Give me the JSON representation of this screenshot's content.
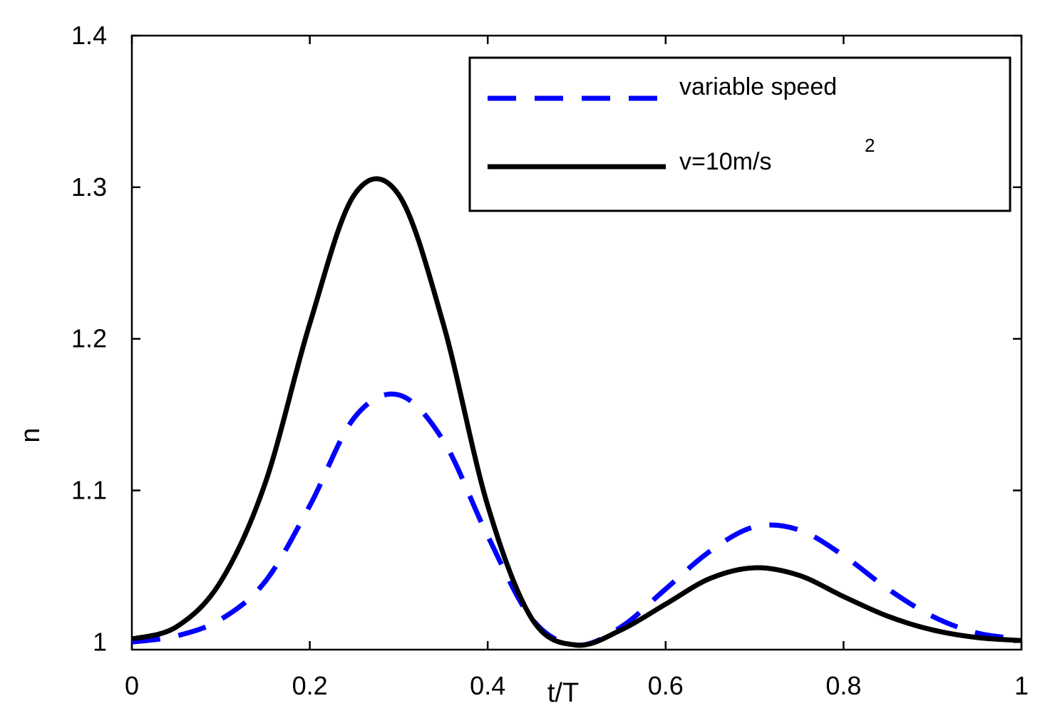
{
  "chart_data": {
    "type": "line",
    "title": "",
    "xlabel": "t/T",
    "ylabel": "n",
    "xlim": [
      0,
      1
    ],
    "ylim": [
      0.995,
      1.4
    ],
    "xticks": [
      0,
      0.2,
      0.4,
      0.6,
      0.8,
      1
    ],
    "xtick_labels": [
      "0",
      "0.2",
      "0.4",
      "0.6",
      "0.8",
      "1"
    ],
    "yticks": [
      1.0,
      1.1,
      1.2,
      1.3,
      1.4
    ],
    "ytick_labels": [
      "1",
      "1.1",
      "1.2",
      "1.3",
      "1.4"
    ],
    "grid": false,
    "legend_position": "top-right",
    "legend_superscript": "2",
    "series": [
      {
        "name": "variable speed",
        "color": "#0000ff",
        "style": "dashed",
        "x": [
          0,
          0.05,
          0.1,
          0.15,
          0.2,
          0.25,
          0.3,
          0.35,
          0.4,
          0.45,
          0.5,
          0.55,
          0.6,
          0.65,
          0.7,
          0.75,
          0.8,
          0.85,
          0.9,
          0.95,
          1.0
        ],
        "y": [
          1.0,
          1.004,
          1.015,
          1.04,
          1.09,
          1.148,
          1.163,
          1.133,
          1.07,
          1.015,
          0.998,
          1.01,
          1.035,
          1.06,
          1.076,
          1.074,
          1.057,
          1.035,
          1.017,
          1.006,
          1.002
        ]
      },
      {
        "name": "v=10m/s",
        "color": "#000000",
        "style": "solid",
        "x": [
          0,
          0.05,
          0.1,
          0.15,
          0.2,
          0.25,
          0.3,
          0.35,
          0.4,
          0.45,
          0.5,
          0.55,
          0.6,
          0.65,
          0.7,
          0.75,
          0.8,
          0.85,
          0.9,
          0.95,
          1.0
        ],
        "y": [
          1.002,
          1.01,
          1.04,
          1.105,
          1.21,
          1.295,
          1.295,
          1.21,
          1.09,
          1.015,
          0.998,
          1.008,
          1.025,
          1.042,
          1.049,
          1.044,
          1.03,
          1.017,
          1.008,
          1.003,
          1.001
        ]
      }
    ]
  }
}
